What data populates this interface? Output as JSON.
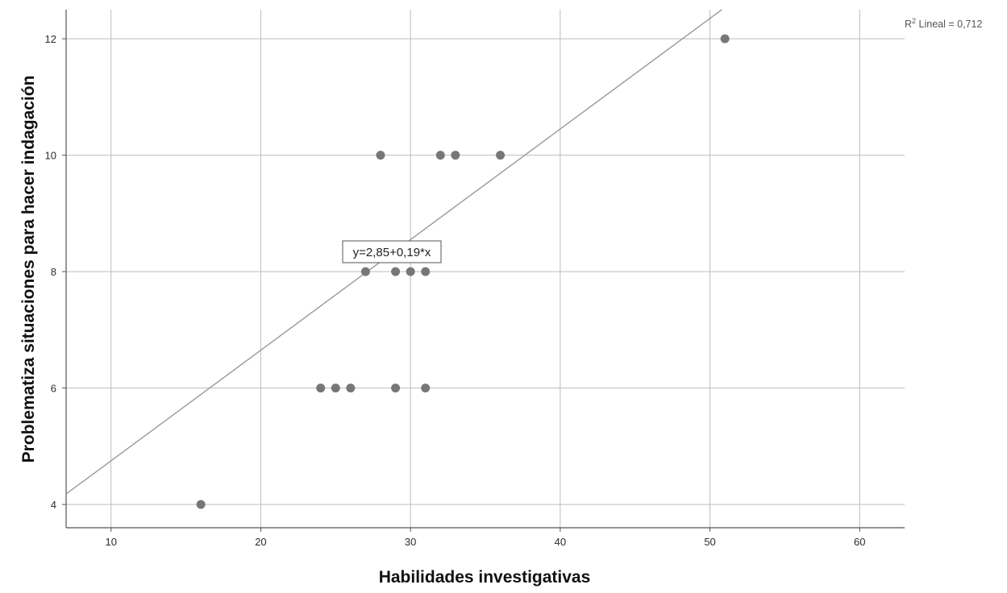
{
  "chart_data": {
    "type": "scatter",
    "title": "",
    "xlabel": "Habilidades investigativas",
    "ylabel": "Problematiza situaciones para hacer indagación",
    "xlim": [
      7,
      63
    ],
    "ylim": [
      3.6,
      12.5
    ],
    "x_ticks": [
      10,
      20,
      30,
      40,
      50,
      60
    ],
    "y_ticks": [
      4,
      6,
      8,
      10,
      12
    ],
    "grid": true,
    "series": [
      {
        "points": [
          {
            "x": 16,
            "y": 4
          },
          {
            "x": 24,
            "y": 6
          },
          {
            "x": 25,
            "y": 6
          },
          {
            "x": 26,
            "y": 6
          },
          {
            "x": 29,
            "y": 6
          },
          {
            "x": 31,
            "y": 6
          },
          {
            "x": 27,
            "y": 8
          },
          {
            "x": 29,
            "y": 8
          },
          {
            "x": 30,
            "y": 8
          },
          {
            "x": 31,
            "y": 8
          },
          {
            "x": 28,
            "y": 10
          },
          {
            "x": 32,
            "y": 10
          },
          {
            "x": 33,
            "y": 10
          },
          {
            "x": 36,
            "y": 10
          },
          {
            "x": 51,
            "y": 12
          }
        ]
      }
    ],
    "fit_line": {
      "intercept": 2.85,
      "slope": 0.19,
      "equation_label": "y=2,85+0,19*x",
      "r2_prefix": "R",
      "r2_sup": "2",
      "r2_suffix": " Lineal = 0,712"
    },
    "colors": {
      "points": "#777777",
      "fit_line": "#999999",
      "grid": "#bdbdbd",
      "axis": "#555555"
    }
  }
}
